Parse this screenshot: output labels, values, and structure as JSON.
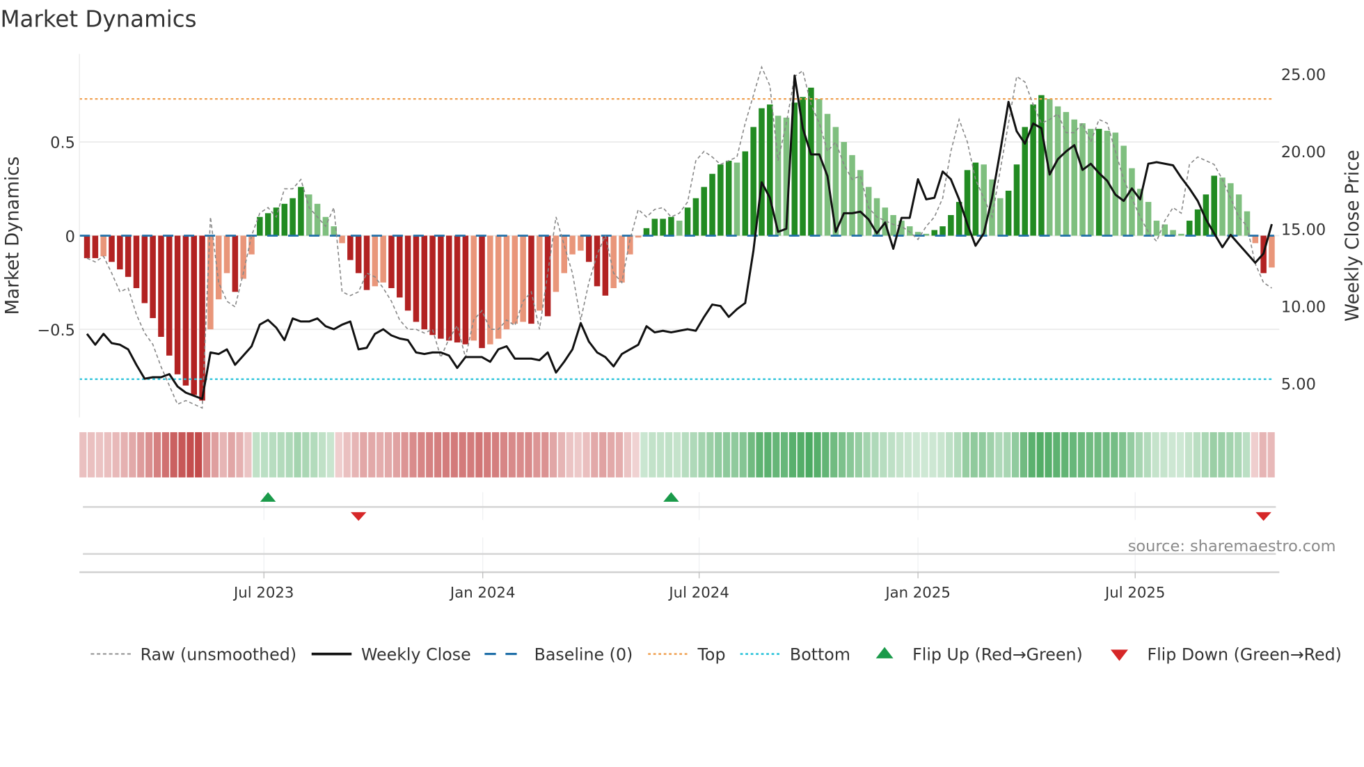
{
  "chart_data": {
    "type": "bar",
    "title": "Market Dynamics",
    "ylabel": "Market Dynamics",
    "y2label": "Weekly Close Price",
    "ylim": [
      -0.97,
      0.97
    ],
    "y2lim": [
      2.8,
      26.3
    ],
    "yticks": [
      {
        "v": 0.5,
        "label": "0.5"
      },
      {
        "v": 0,
        "label": "0"
      },
      {
        "v": -0.5,
        "label": "−0.5"
      }
    ],
    "y2ticks": [
      {
        "v": 25,
        "label": "25.00"
      },
      {
        "v": 20,
        "label": "20.00"
      },
      {
        "v": 15,
        "label": "15.00"
      },
      {
        "v": 10,
        "label": "10.00"
      },
      {
        "v": 5,
        "label": "5.00"
      }
    ],
    "xticks": [
      {
        "week": 21.5,
        "label": "Jul 2023"
      },
      {
        "week": 48.1,
        "label": "Jan 2024"
      },
      {
        "week": 74.4,
        "label": "Jul 2024"
      },
      {
        "week": 101,
        "label": "Jan 2025"
      },
      {
        "week": 127.4,
        "label": "Jul 2025"
      }
    ],
    "top": 0.73,
    "bottom": -0.766,
    "baseline": 0,
    "grid": true,
    "legend_position": "bottom",
    "source": "source: sharemaestro.com",
    "colors": {
      "dark_red": "#b22222",
      "light_red": "#e9967a",
      "dark_green": "#228b22",
      "light_green": "#7fbf7f",
      "top": "#f0a050",
      "bottom": "#22c0d8",
      "baseline": "#1f6fa8",
      "raw": "#888888",
      "close": "#111111",
      "flip_up": "#1a9a4a",
      "flip_down": "#d62728"
    },
    "bars": [
      -0.12,
      -0.12,
      -0.11,
      -0.14,
      -0.18,
      -0.22,
      -0.28,
      -0.36,
      -0.44,
      -0.54,
      -0.64,
      -0.74,
      -0.8,
      -0.85,
      -0.88,
      -0.5,
      -0.34,
      -0.2,
      -0.3,
      -0.23,
      -0.1,
      0.1,
      0.12,
      0.15,
      0.17,
      0.2,
      0.26,
      0.22,
      0.17,
      0.1,
      0.05,
      -0.04,
      -0.13,
      -0.2,
      -0.29,
      -0.27,
      -0.25,
      -0.28,
      -0.33,
      -0.4,
      -0.46,
      -0.5,
      -0.53,
      -0.55,
      -0.56,
      -0.57,
      -0.58,
      -0.56,
      -0.6,
      -0.58,
      -0.55,
      -0.5,
      -0.47,
      -0.46,
      -0.47,
      -0.4,
      -0.43,
      -0.3,
      -0.2,
      -0.1,
      -0.08,
      -0.14,
      -0.27,
      -0.32,
      -0.28,
      -0.25,
      -0.1,
      -0.01,
      0.04,
      0.09,
      0.09,
      0.1,
      0.08,
      0.15,
      0.2,
      0.26,
      0.33,
      0.38,
      0.4,
      0.39,
      0.45,
      0.58,
      0.68,
      0.7,
      0.64,
      0.63,
      0.71,
      0.74,
      0.79,
      0.73,
      0.65,
      0.58,
      0.5,
      0.43,
      0.35,
      0.26,
      0.2,
      0.15,
      0.11,
      0.08,
      0.05,
      0.02,
      0.01,
      0.03,
      0.05,
      0.11,
      0.18,
      0.35,
      0.39,
      0.38,
      0.3,
      0.2,
      0.24,
      0.38,
      0.58,
      0.7,
      0.75,
      0.73,
      0.69,
      0.66,
      0.62,
      0.6,
      0.57,
      0.57,
      0.56,
      0.55,
      0.48,
      0.36,
      0.25,
      0.18,
      0.08,
      0.06,
      0.03,
      0.01,
      0.08,
      0.14,
      0.22,
      0.32,
      0.31,
      0.28,
      0.22,
      0.13,
      -0.04,
      -0.2,
      -0.17
    ],
    "raw": [
      -0.12,
      -0.14,
      -0.11,
      -0.2,
      -0.3,
      -0.28,
      -0.42,
      -0.52,
      -0.58,
      -0.7,
      -0.8,
      -0.9,
      -0.88,
      -0.9,
      -0.92,
      0.1,
      -0.25,
      -0.35,
      -0.38,
      -0.2,
      0.0,
      0.12,
      0.15,
      0.1,
      0.25,
      0.25,
      0.3,
      0.15,
      0.1,
      0.05,
      0.15,
      -0.3,
      -0.32,
      -0.3,
      -0.2,
      -0.22,
      -0.28,
      -0.35,
      -0.45,
      -0.5,
      -0.5,
      -0.52,
      -0.5,
      -0.65,
      -0.55,
      -0.48,
      -0.65,
      -0.45,
      -0.4,
      -0.5,
      -0.5,
      -0.45,
      -0.48,
      -0.35,
      -0.3,
      -0.5,
      -0.2,
      0.1,
      -0.05,
      -0.2,
      -0.45,
      -0.25,
      -0.1,
      0.0,
      -0.2,
      -0.25,
      -0.02,
      0.14,
      0.1,
      0.14,
      0.15,
      0.1,
      0.12,
      0.18,
      0.4,
      0.45,
      0.42,
      0.38,
      0.4,
      0.42,
      0.6,
      0.75,
      0.9,
      0.8,
      0.4,
      0.6,
      0.85,
      0.88,
      0.7,
      0.6,
      0.45,
      0.5,
      0.38,
      0.3,
      0.32,
      0.15,
      0.1,
      0.08,
      0.06,
      0.05,
      0.02,
      -0.02,
      0.05,
      0.1,
      0.2,
      0.45,
      0.62,
      0.5,
      0.3,
      0.2,
      0.1,
      0.35,
      0.6,
      0.85,
      0.82,
      0.7,
      0.6,
      0.62,
      0.65,
      0.55,
      0.55,
      0.6,
      0.5,
      0.62,
      0.6,
      0.45,
      0.3,
      0.2,
      0.1,
      0.02,
      -0.03,
      0.08,
      0.15,
      0.12,
      0.38,
      0.42,
      0.4,
      0.38,
      0.3,
      0.2,
      0.1,
      0.05,
      -0.15,
      -0.25,
      -0.28
    ],
    "close": [
      8.2,
      7.5,
      8.2,
      7.6,
      7.5,
      7.2,
      6.2,
      5.3,
      5.4,
      5.4,
      5.6,
      4.8,
      4.4,
      4.2,
      4.0,
      7.0,
      6.9,
      7.2,
      6.2,
      6.8,
      7.4,
      8.8,
      9.1,
      8.6,
      7.8,
      9.2,
      9.0,
      9.0,
      9.2,
      8.7,
      8.5,
      8.8,
      9.0,
      7.2,
      7.3,
      8.2,
      8.5,
      8.1,
      7.9,
      7.8,
      7.0,
      6.9,
      7.0,
      7.0,
      6.8,
      6.0,
      6.7,
      6.7,
      6.7,
      6.4,
      7.2,
      7.4,
      6.6,
      6.6,
      6.6,
      6.5,
      7.0,
      5.7,
      6.4,
      7.2,
      8.9,
      7.7,
      7.0,
      6.7,
      6.1,
      6.9,
      7.2,
      7.5,
      8.7,
      8.3,
      8.4,
      8.3,
      8.4,
      8.5,
      8.4,
      9.3,
      10.1,
      10.0,
      9.3,
      9.8,
      10.2,
      13.6,
      18.0,
      17.0,
      14.8,
      15.0,
      24.9,
      21.5,
      19.8,
      19.8,
      18.4,
      14.8,
      16.0,
      16.0,
      16.1,
      15.6,
      14.7,
      15.4,
      13.7,
      15.7,
      15.7,
      18.2,
      16.9,
      17.0,
      18.7,
      18.2,
      16.9,
      15.3,
      13.9,
      14.7,
      17.0,
      20.0,
      23.2,
      21.3,
      20.5,
      21.8,
      21.5,
      18.5,
      19.5,
      20.0,
      20.4,
      18.8,
      19.2,
      18.6,
      18.1,
      17.2,
      16.8,
      17.6,
      16.9,
      19.2,
      19.3,
      19.2,
      19.1,
      18.3,
      17.6,
      16.8,
      15.6,
      14.7,
      13.8,
      14.6,
      14.0,
      13.4,
      12.8,
      13.4,
      15.3
    ],
    "flips": [
      {
        "week": 22,
        "dir": "up"
      },
      {
        "week": 33,
        "dir": "down"
      },
      {
        "week": 71,
        "dir": "up"
      },
      {
        "week": 143,
        "dir": "down"
      }
    ],
    "legend": [
      {
        "key": "raw",
        "label": "Raw (unsmoothed)"
      },
      {
        "key": "close",
        "label": "Weekly Close"
      },
      {
        "key": "baseline",
        "label": "Baseline (0)"
      },
      {
        "key": "top",
        "label": "Top"
      },
      {
        "key": "bottom",
        "label": "Bottom"
      },
      {
        "key": "flip_up",
        "label": "Flip Up (Red→Green)"
      },
      {
        "key": "flip_down",
        "label": "Flip Down (Green→Red)"
      }
    ]
  }
}
